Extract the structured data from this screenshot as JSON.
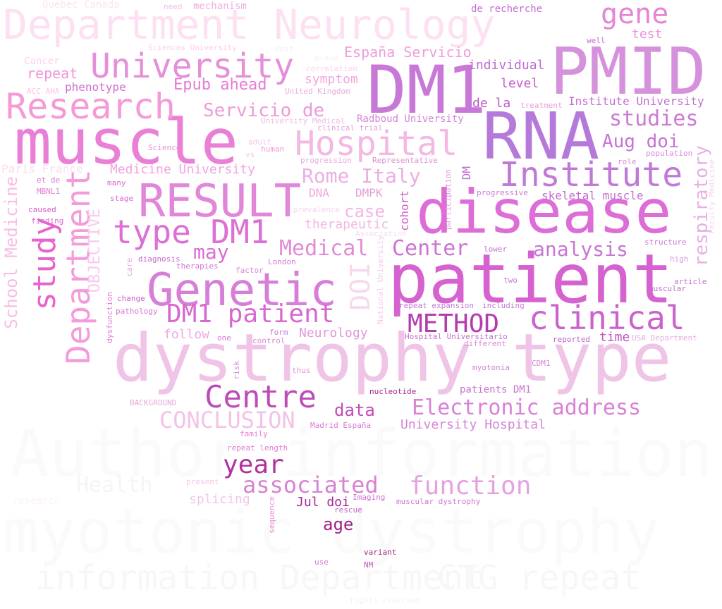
{
  "words": [
    {
      "text": "Author information",
      "color": "#fafafa"
    },
    {
      "text": "myotonic dystrophy",
      "color": "#fafafa"
    },
    {
      "text": "information Department",
      "color": "#f7f7f7"
    },
    {
      "text": "CTG repeat",
      "color": "#f7f7f7"
    },
    {
      "text": "Health",
      "color": "#f5f5f5"
    },
    {
      "text": "dystrophy type",
      "color": "#f0c4e6"
    },
    {
      "text": "Department Neurology",
      "color": "#fde0f1"
    },
    {
      "text": "PMID",
      "color": "#d591db"
    },
    {
      "text": "DM1",
      "color": "#c879d8"
    },
    {
      "text": "RNA",
      "color": "#b57ad9"
    },
    {
      "text": "muscle",
      "color": "#ea7fd6"
    },
    {
      "text": "disease",
      "color": "#dd6ed7"
    },
    {
      "text": "patient",
      "color": "#d662cf"
    },
    {
      "text": "RESULT",
      "color": "#e186d9"
    },
    {
      "text": "Genetic",
      "color": "#d77fd8"
    },
    {
      "text": "Institute",
      "color": "#c07ad6"
    },
    {
      "text": "University",
      "color": "#e68fd8"
    },
    {
      "text": "Research",
      "color": "#f49ad7"
    },
    {
      "text": "Hospital",
      "color": "#f3b8e3"
    },
    {
      "text": "gene",
      "color": "#e585d5"
    },
    {
      "text": "type DM1",
      "color": "#dd70d4"
    },
    {
      "text": "Department",
      "color": "#f29cdb"
    },
    {
      "text": "study",
      "color": "#e863cc"
    },
    {
      "text": "clinical",
      "color": "#cc62cc"
    },
    {
      "text": "Centre",
      "color": "#be4cb8"
    },
    {
      "text": "DM1 patient",
      "color": "#d867cf"
    },
    {
      "text": "METHOD",
      "color": "#b53cae"
    },
    {
      "text": "Medical",
      "color": "#e28ad7"
    },
    {
      "text": "Center",
      "color": "#cd71d3"
    },
    {
      "text": "analysis",
      "color": "#c677d1"
    },
    {
      "text": "Electronic address",
      "color": "#d981d6"
    },
    {
      "text": "year",
      "color": "#b4309e"
    },
    {
      "text": "associated",
      "color": "#d783d2"
    },
    {
      "text": "function",
      "color": "#e6a1df"
    },
    {
      "text": "CONCLUSION",
      "color": "#f3c3e7"
    },
    {
      "text": "data",
      "color": "#c24bbb"
    },
    {
      "text": "age",
      "color": "#a21f86"
    },
    {
      "text": "Jul doi",
      "color": "#a8299a"
    },
    {
      "text": "may",
      "color": "#db6ed4"
    },
    {
      "text": "Epub ahead",
      "color": "#e47bd4"
    },
    {
      "text": "Servicio de",
      "color": "#ed9ad9"
    },
    {
      "text": "España Servicio",
      "color": "#ec9dd9"
    },
    {
      "text": "studies",
      "color": "#ce7ad4"
    },
    {
      "text": "Aug doi",
      "color": "#c674d2"
    },
    {
      "text": "Rome Italy",
      "color": "#ebb0e2"
    },
    {
      "text": "case",
      "color": "#f0b6e3"
    },
    {
      "text": "therapeutic",
      "color": "#f1b7e2"
    },
    {
      "text": "Medicine University",
      "color": "#f0a4dd"
    },
    {
      "text": "School Medicine",
      "color": "#f7bde7"
    },
    {
      "text": "OBJECTIVE",
      "color": "#f9c9ee"
    },
    {
      "text": "respiratory",
      "color": "#e7b0e1"
    },
    {
      "text": "DOI",
      "color": "#f8d8ef"
    },
    {
      "text": "follow",
      "color": "#f2a8dd"
    },
    {
      "text": "Neurology",
      "color": "#e19ad9"
    },
    {
      "text": "time",
      "color": "#be55bd"
    },
    {
      "text": "University Hospital",
      "color": "#d486d5"
    },
    {
      "text": "splicing",
      "color": "#f0c6ea"
    },
    {
      "text": "patients DM1",
      "color": "#c874d2"
    },
    {
      "text": "individual",
      "color": "#bc6cd2"
    },
    {
      "text": "level",
      "color": "#c65fcb"
    },
    {
      "text": "de la",
      "color": "#bb5bc6"
    },
    {
      "text": "test",
      "color": "#ec8fdb"
    },
    {
      "text": "Institute University",
      "color": "#c470d2"
    },
    {
      "text": "de recherche",
      "color": "#c56ad0"
    },
    {
      "text": "symptom",
      "color": "#f0a7dd"
    },
    {
      "text": "repeat",
      "color": "#f095d8"
    },
    {
      "text": "phenotype",
      "color": "#d46bcf"
    },
    {
      "text": "Radboud University",
      "color": "#d784d7"
    },
    {
      "text": "DNA",
      "color": "#f0a7dd"
    },
    {
      "text": "DMPK",
      "color": "#e49ed8"
    },
    {
      "text": "cohort",
      "color": "#d05ecb"
    },
    {
      "text": "DM",
      "color": "#bc6dd1"
    },
    {
      "text": "skeletal muscle",
      "color": "#c06fd2"
    },
    {
      "text": "Paris France",
      "color": "#fbdcef"
    },
    {
      "text": "Québec Canada",
      "color": "#fbe3f2"
    },
    {
      "text": "mechanism",
      "color": "#efaddf"
    },
    {
      "text": "Cancer",
      "color": "#f9d3ed"
    },
    {
      "text": "Sciences University",
      "color": "#f8cfea"
    },
    {
      "text": "correlation",
      "color": "#f8d3ed"
    },
    {
      "text": "United Kingdom",
      "color": "#e9acdf"
    },
    {
      "text": "University Medical",
      "color": "#f1b9e3"
    },
    {
      "text": "clinical trial",
      "color": "#e59fda"
    },
    {
      "text": "treatment",
      "color": "#e89dda"
    },
    {
      "text": "ACC AHA",
      "color": "#f5c2e7"
    },
    {
      "text": "well",
      "color": "#c86ad0"
    },
    {
      "text": "adult",
      "color": "#f5c5e8"
    },
    {
      "text": "Science",
      "color": "#e791d8"
    },
    {
      "text": "human",
      "color": "#ef98d8"
    },
    {
      "text": "vs",
      "color": "#f7c5e8"
    },
    {
      "text": "progression",
      "color": "#e9a8dd"
    },
    {
      "text": "Representative",
      "color": "#df8fd6"
    },
    {
      "text": "population",
      "color": "#d889d7"
    },
    {
      "text": "role",
      "color": "#d889d6"
    },
    {
      "text": "Faculty Medicine",
      "color": "#f7d3ee"
    },
    {
      "text": "et de",
      "color": "#db78d3"
    },
    {
      "text": "MBNL1",
      "color": "#e27fd6"
    },
    {
      "text": "many",
      "color": "#d86ed2"
    },
    {
      "text": "stage",
      "color": "#d56cd1"
    },
    {
      "text": "caused",
      "color": "#d45bc7"
    },
    {
      "text": "finding",
      "color": "#d76bcf"
    },
    {
      "text": "prevalence",
      "color": "#f8d3ee"
    },
    {
      "text": "Association",
      "color": "#f8dcf0"
    },
    {
      "text": "participation",
      "color": "#de99d8"
    },
    {
      "text": "progressive",
      "color": "#cf79d3"
    },
    {
      "text": "structure",
      "color": "#c97dd4"
    },
    {
      "text": "high",
      "color": "#d79ddb"
    },
    {
      "text": "diagnosis",
      "color": "#c766cd"
    },
    {
      "text": "therapies",
      "color": "#d176d2"
    },
    {
      "text": "factor",
      "color": "#d88ad6"
    },
    {
      "text": "London",
      "color": "#d77ad3"
    },
    {
      "text": "care",
      "color": "#e0a1dc"
    },
    {
      "text": "change",
      "color": "#c665cc"
    },
    {
      "text": "pathology",
      "color": "#d276d1"
    },
    {
      "text": "dysfunction",
      "color": "#e17cd6"
    },
    {
      "text": "one",
      "color": "#dc74d3"
    },
    {
      "text": "form",
      "color": "#c47dd3"
    },
    {
      "text": "control",
      "color": "#d58ad6"
    },
    {
      "text": "National University",
      "color": "#f2cbeb"
    },
    {
      "text": "lower",
      "color": "#c26ece"
    },
    {
      "text": "two",
      "color": "#c07bd6"
    },
    {
      "text": "article",
      "color": "#c275d0"
    },
    {
      "text": "muscular",
      "color": "#c26ece"
    },
    {
      "text": "repeat expansion",
      "color": "#c17bd5"
    },
    {
      "text": "including",
      "color": "#c27bd5"
    },
    {
      "text": "Hospital Universitario",
      "color": "#c56dcf"
    },
    {
      "text": "different",
      "color": "#d987d6"
    },
    {
      "text": "reported",
      "color": "#bd67ce"
    },
    {
      "text": "USA Department",
      "color": "#e6aedf"
    },
    {
      "text": "myotonia",
      "color": "#d285d5"
    },
    {
      "text": "CDM1",
      "color": "#d388d6"
    },
    {
      "text": "risk",
      "color": "#d987d6"
    },
    {
      "text": "thus",
      "color": "#e68fd8"
    },
    {
      "text": "nucleotide",
      "color": "#a8258e"
    },
    {
      "text": "BACKGROUND",
      "color": "#e8a6dc"
    },
    {
      "text": "Madrid España",
      "color": "#d97bd5"
    },
    {
      "text": "family",
      "color": "#e37cd5"
    },
    {
      "text": "repeat length",
      "color": "#e07ad4"
    },
    {
      "text": "present",
      "color": "#f5c7e8"
    },
    {
      "text": "Imaging",
      "color": "#cc6bcf"
    },
    {
      "text": "rescue",
      "color": "#c364cc"
    },
    {
      "text": "muscular dystrophy",
      "color": "#cc78d3"
    },
    {
      "text": "sequence",
      "color": "#e891d9"
    },
    {
      "text": "variant",
      "color": "#a2287f"
    },
    {
      "text": "NM",
      "color": "#c657c4"
    },
    {
      "text": "use",
      "color": "#d57cd5"
    },
    {
      "text": "rights reserved",
      "color": "#f2f2f2"
    },
    {
      "text": "Unit",
      "color": "#f8e7f3"
    },
    {
      "text": "need",
      "color": "#f0bde6"
    },
    {
      "text": "group",
      "color": "#f9eef6"
    },
    {
      "text": "research",
      "color": "#fcf1f8"
    }
  ]
}
